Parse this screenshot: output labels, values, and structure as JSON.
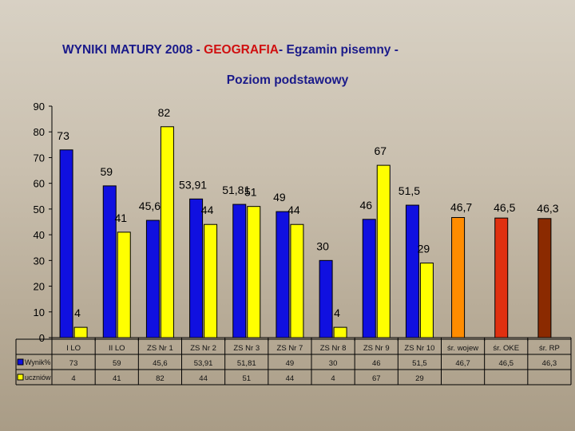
{
  "title": {
    "part1": "WYNIKI MATURY 2008  - ",
    "highlight": "GEOGRAFIA",
    "part2": "- Egzamin pisemny -"
  },
  "subtitle": "Poziom podstawowy",
  "colors": {
    "wynik": "#1010e0",
    "uczniow": "#ffff00",
    "woj": "#ff8c00",
    "oke": "#e03010",
    "rp": "#8b2a00"
  },
  "chart_data": {
    "type": "bar",
    "ylim": [
      0,
      90
    ],
    "yticks": [
      "0",
      "10",
      "20",
      "30",
      "40",
      "50",
      "60",
      "70",
      "80",
      "90"
    ],
    "categories": [
      "I LO",
      "II LO",
      "ZS Nr 1",
      "ZS Nr 2",
      "ZS Nr 3",
      "ZS Nr 7",
      "ZS Nr 8",
      "ZS Nr 9",
      "ZS Nr 10",
      "śr. wojew",
      "śr. OKE",
      "śr. RP"
    ],
    "series": [
      {
        "name": "Wynik%",
        "values": [
          73,
          59,
          45.6,
          53.91,
          51.81,
          49,
          30,
          46,
          51.5,
          46.7,
          46.5,
          46.3
        ]
      },
      {
        "name": "uczniów",
        "values": [
          4,
          41,
          82,
          44,
          51,
          44,
          4,
          67,
          29,
          null,
          null,
          null
        ]
      }
    ],
    "bar_labels": {
      "wynik": [
        "73",
        "59",
        "45,6",
        "53,91",
        "51,81",
        "49",
        "30",
        "46",
        "51,5",
        "46,7",
        "46,5",
        "46,3"
      ],
      "uczniow": [
        "4",
        "41",
        "82",
        "44",
        "51",
        "44",
        "4",
        "67",
        "29"
      ]
    },
    "table": {
      "row_labels": [
        "Wynik%",
        "uczniów"
      ],
      "rows": [
        [
          "73",
          "59",
          "45,6",
          "53,91",
          "51,81",
          "49",
          "30",
          "46",
          "51,5",
          "46,7",
          "46,5",
          "46,3"
        ],
        [
          "4",
          "41",
          "82",
          "44",
          "51",
          "44",
          "4",
          "67",
          "29",
          "",
          "",
          ""
        ]
      ]
    }
  }
}
